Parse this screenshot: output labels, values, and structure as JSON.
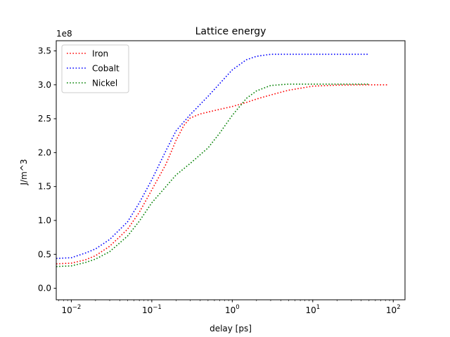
{
  "chart_data": {
    "type": "line",
    "title": "Lattice energy",
    "xlabel": "delay [ps]",
    "ylabel": "J/m^3",
    "y_offset_label": "1e8",
    "x_scale": "log",
    "xlim": [
      0.0065,
      140
    ],
    "ylim": [
      -17000000,
      365000000
    ],
    "x_ticks": [
      0.01,
      0.1,
      1,
      10,
      100
    ],
    "x_tick_labels": [
      {
        "base": "10",
        "exp": "−2"
      },
      {
        "base": "10",
        "exp": "−1"
      },
      {
        "base": "10",
        "exp": "0"
      },
      {
        "base": "10",
        "exp": "1"
      },
      {
        "base": "10",
        "exp": "2"
      }
    ],
    "y_ticks": [
      0,
      50000000,
      100000000,
      150000000,
      200000000,
      250000000,
      300000000,
      350000000
    ],
    "y_tick_labels": [
      "0.0",
      "0.5",
      "1.0",
      "1.5",
      "2.0",
      "2.5",
      "3.0",
      "3.5"
    ],
    "grid": false,
    "legend_position": "top-left",
    "series": [
      {
        "name": "Iron",
        "color": "#ff0000",
        "line_style": "dotted",
        "points": [
          [
            0.0065,
            36000000
          ],
          [
            0.01,
            37000000
          ],
          [
            0.015,
            42000000
          ],
          [
            0.02,
            48000000
          ],
          [
            0.03,
            62000000
          ],
          [
            0.05,
            87000000
          ],
          [
            0.07,
            112000000
          ],
          [
            0.1,
            145000000
          ],
          [
            0.15,
            183000000
          ],
          [
            0.2,
            218000000
          ],
          [
            0.25,
            240000000
          ],
          [
            0.3,
            251000000
          ],
          [
            0.4,
            257000000
          ],
          [
            0.6,
            262000000
          ],
          [
            1,
            268000000
          ],
          [
            1.5,
            274000000
          ],
          [
            2,
            279000000
          ],
          [
            3,
            285000000
          ],
          [
            5,
            292000000
          ],
          [
            10,
            298000000
          ],
          [
            20,
            299500000
          ],
          [
            40,
            300000000
          ],
          [
            85,
            300000000
          ]
        ]
      },
      {
        "name": "Cobalt",
        "color": "#0000ff",
        "line_style": "dotted",
        "points": [
          [
            0.0065,
            44000000
          ],
          [
            0.01,
            45000000
          ],
          [
            0.015,
            52000000
          ],
          [
            0.02,
            58000000
          ],
          [
            0.03,
            72000000
          ],
          [
            0.05,
            98000000
          ],
          [
            0.07,
            126000000
          ],
          [
            0.1,
            160000000
          ],
          [
            0.15,
            203000000
          ],
          [
            0.2,
            232000000
          ],
          [
            0.3,
            256000000
          ],
          [
            0.5,
            283000000
          ],
          [
            0.7,
            302000000
          ],
          [
            1,
            322000000
          ],
          [
            1.5,
            337000000
          ],
          [
            2,
            342000000
          ],
          [
            3,
            345000000
          ],
          [
            5,
            345000000
          ],
          [
            10,
            345000000
          ],
          [
            50,
            345000000
          ]
        ]
      },
      {
        "name": "Nickel",
        "color": "#008000",
        "line_style": "dotted",
        "points": [
          [
            0.0065,
            32000000
          ],
          [
            0.01,
            33000000
          ],
          [
            0.015,
            38000000
          ],
          [
            0.02,
            43000000
          ],
          [
            0.03,
            54000000
          ],
          [
            0.05,
            77000000
          ],
          [
            0.07,
            99000000
          ],
          [
            0.1,
            126000000
          ],
          [
            0.15,
            150000000
          ],
          [
            0.2,
            167000000
          ],
          [
            0.3,
            184000000
          ],
          [
            0.5,
            207000000
          ],
          [
            0.7,
            229000000
          ],
          [
            1,
            255000000
          ],
          [
            1.5,
            280000000
          ],
          [
            2,
            291000000
          ],
          [
            3,
            299000000
          ],
          [
            5,
            301000000
          ],
          [
            10,
            301000000
          ],
          [
            20,
            301000000
          ],
          [
            50,
            301000000
          ]
        ]
      }
    ]
  }
}
